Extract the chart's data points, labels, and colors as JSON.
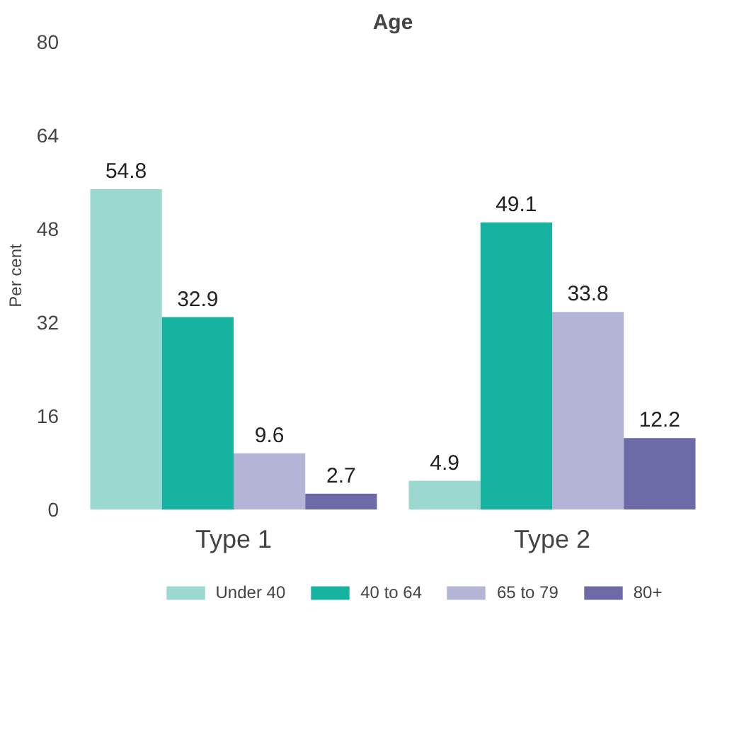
{
  "chart_data": {
    "type": "bar",
    "title": "Age",
    "ylabel": "Per cent",
    "categories": [
      "Type 1",
      "Type 2"
    ],
    "series": [
      {
        "name": "Under 40",
        "color": "#9bd9d0",
        "values": [
          54.8,
          4.9
        ]
      },
      {
        "name": "40 to 64",
        "color": "#16b3a0",
        "values": [
          32.9,
          49.1
        ]
      },
      {
        "name": "65 to 79",
        "color": "#b4b4d6",
        "values": [
          9.6,
          33.8
        ]
      },
      {
        "name": "80+",
        "color": "#6d6aa8",
        "values": [
          2.7,
          12.2
        ]
      }
    ],
    "ylim": [
      0,
      80
    ],
    "yticks": [
      0,
      16,
      32,
      48,
      64,
      80
    ],
    "grid": false,
    "legend": "bottom",
    "data_labels": true
  }
}
